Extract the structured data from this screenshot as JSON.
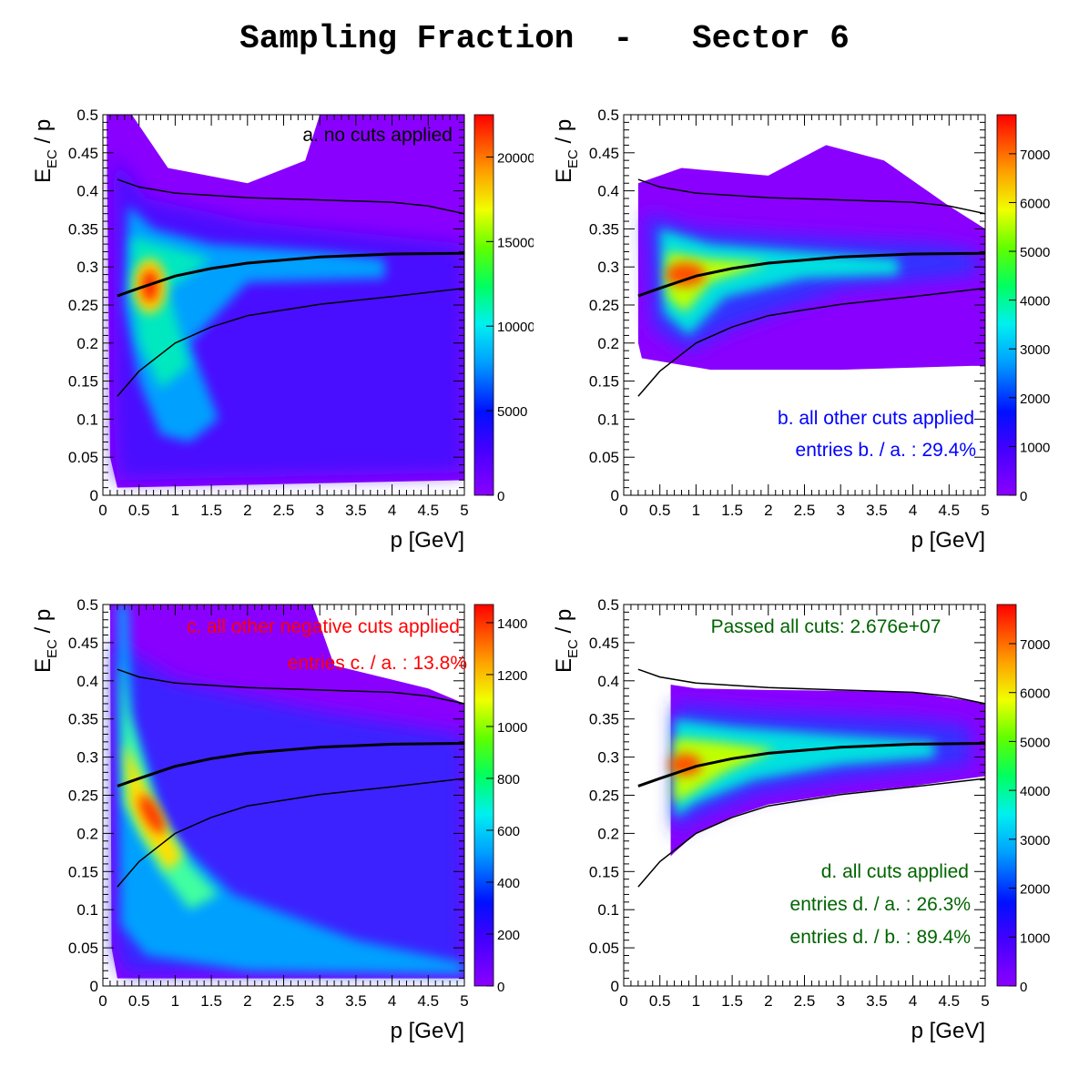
{
  "title": "Sampling Fraction  -   Sector 6",
  "chart_data": [
    {
      "type": "heatmap",
      "annotation": "a. no cuts applied",
      "annotation_color": "#000000",
      "xlabel": "p  [GeV]",
      "ylabel_main": "E",
      "ylabel_sub": "EC",
      "ylabel_tail": " / p",
      "xlim": [
        0,
        5
      ],
      "ylim": [
        0,
        0.5
      ],
      "x_ticks": [
        "0",
        "0.5",
        "1",
        "1.5",
        "2",
        "2.5",
        "3",
        "3.5",
        "4",
        "4.5",
        "5"
      ],
      "y_ticks": [
        "0",
        "0.05",
        "0.1",
        "0.15",
        "0.2",
        "0.25",
        "0.3",
        "0.35",
        "0.4",
        "0.45",
        "0.5"
      ],
      "z_max": 22500,
      "z_ticks": [
        "0",
        "5000",
        "10000",
        "15000",
        "20000"
      ],
      "z_tick_values": [
        0,
        5000,
        10000,
        15000,
        20000
      ],
      "z_label_clip": true,
      "colormap": "rainbow (purple-blue-cyan-green-yellow-red)",
      "mean_curve": {
        "x": [
          0.2,
          0.5,
          1,
          1.5,
          2,
          3,
          4,
          5
        ],
        "y": [
          0.262,
          0.272,
          0.288,
          0.298,
          0.305,
          0.313,
          0.317,
          0.318
        ]
      },
      "upper_cut": {
        "x": [
          0.2,
          0.5,
          1,
          2,
          3,
          4,
          4.5,
          5
        ],
        "y": [
          0.415,
          0.405,
          0.397,
          0.391,
          0.388,
          0.385,
          0.38,
          0.37
        ]
      },
      "lower_cut": {
        "x": [
          0.2,
          0.5,
          1,
          1.5,
          2,
          3,
          4,
          5
        ],
        "y": [
          0.13,
          0.163,
          0.2,
          0.221,
          0.236,
          0.251,
          0.261,
          0.272
        ]
      }
    },
    {
      "type": "heatmap",
      "annotation": "b. all other cuts applied",
      "annotation2": "entries b. / a. : 29.4%",
      "annotation_color": "#0000ff",
      "xlabel": "p  [GeV]",
      "ylabel_main": "E",
      "ylabel_sub": "EC",
      "ylabel_tail": " / p",
      "xlim": [
        0,
        5
      ],
      "ylim": [
        0,
        0.5
      ],
      "x_ticks": [
        "0",
        "0.5",
        "1",
        "1.5",
        "2",
        "2.5",
        "3",
        "3.5",
        "4",
        "4.5",
        "5"
      ],
      "y_ticks": [
        "0",
        "0.05",
        "0.1",
        "0.15",
        "0.2",
        "0.25",
        "0.3",
        "0.35",
        "0.4",
        "0.45",
        "0.5"
      ],
      "z_max": 7800,
      "z_ticks": [
        "0",
        "1000",
        "2000",
        "3000",
        "4000",
        "5000",
        "6000",
        "7000"
      ],
      "z_tick_values": [
        0,
        1000,
        2000,
        3000,
        4000,
        5000,
        6000,
        7000
      ],
      "colormap": "rainbow (purple-blue-cyan-green-yellow-red)",
      "mean_curve": {
        "x": [
          0.2,
          0.5,
          1,
          1.5,
          2,
          3,
          4,
          5
        ],
        "y": [
          0.262,
          0.272,
          0.288,
          0.298,
          0.305,
          0.313,
          0.317,
          0.318
        ]
      },
      "upper_cut": {
        "x": [
          0.2,
          0.5,
          1,
          2,
          3,
          4,
          4.5,
          5
        ],
        "y": [
          0.415,
          0.405,
          0.397,
          0.391,
          0.388,
          0.385,
          0.38,
          0.37
        ]
      },
      "lower_cut": {
        "x": [
          0.2,
          0.5,
          1,
          1.5,
          2,
          3,
          4,
          5
        ],
        "y": [
          0.13,
          0.163,
          0.2,
          0.221,
          0.236,
          0.251,
          0.261,
          0.272
        ]
      }
    },
    {
      "type": "heatmap",
      "annotation": "c. all other negative cuts applied",
      "annotation2": "entries c. / a. : 13.8%",
      "annotation_color": "#ff0000",
      "xlabel": "p  [GeV]",
      "ylabel_main": "E",
      "ylabel_sub": "EC",
      "ylabel_tail": " / p",
      "xlim": [
        0,
        5
      ],
      "ylim": [
        0,
        0.5
      ],
      "x_ticks": [
        "0",
        "0.5",
        "1",
        "1.5",
        "2",
        "2.5",
        "3",
        "3.5",
        "4",
        "4.5",
        "5"
      ],
      "y_ticks": [
        "0",
        "0.05",
        "0.1",
        "0.15",
        "0.2",
        "0.25",
        "0.3",
        "0.35",
        "0.4",
        "0.45",
        "0.5"
      ],
      "z_max": 1470,
      "z_ticks": [
        "0",
        "200",
        "400",
        "600",
        "800",
        "1000",
        "1200",
        "1400"
      ],
      "z_tick_values": [
        0,
        200,
        400,
        600,
        800,
        1000,
        1200,
        1400
      ],
      "colormap": "rainbow (purple-blue-cyan-green-yellow-red)",
      "mean_curve": {
        "x": [
          0.2,
          0.5,
          1,
          1.5,
          2,
          3,
          4,
          5
        ],
        "y": [
          0.262,
          0.272,
          0.288,
          0.298,
          0.305,
          0.313,
          0.317,
          0.318
        ]
      },
      "upper_cut": {
        "x": [
          0.2,
          0.5,
          1,
          2,
          3,
          4,
          4.5,
          5
        ],
        "y": [
          0.415,
          0.405,
          0.397,
          0.391,
          0.388,
          0.385,
          0.38,
          0.37
        ]
      },
      "lower_cut": {
        "x": [
          0.2,
          0.5,
          1,
          1.5,
          2,
          3,
          4,
          5
        ],
        "y": [
          0.13,
          0.163,
          0.2,
          0.221,
          0.236,
          0.251,
          0.261,
          0.272
        ]
      }
    },
    {
      "type": "heatmap",
      "annotation_top": "Passed all cuts: 2.676e+07",
      "annotation": "d. all cuts applied",
      "annotation2": "entries d. / a. : 26.3%",
      "annotation3": "entries d. / b. : 89.4%",
      "annotation_color": "#006400",
      "xlabel": "p  [GeV]",
      "ylabel_main": "E",
      "ylabel_sub": "EC",
      "ylabel_tail": " / p",
      "xlim": [
        0,
        5
      ],
      "ylim": [
        0,
        0.5
      ],
      "x_ticks": [
        "0",
        "0.5",
        "1",
        "1.5",
        "2",
        "2.5",
        "3",
        "3.5",
        "4",
        "4.5",
        "5"
      ],
      "y_ticks": [
        "0",
        "0.05",
        "0.1",
        "0.15",
        "0.2",
        "0.25",
        "0.3",
        "0.35",
        "0.4",
        "0.45",
        "0.5"
      ],
      "z_max": 7800,
      "z_ticks": [
        "0",
        "1000",
        "2000",
        "3000",
        "4000",
        "5000",
        "6000",
        "7000"
      ],
      "z_tick_values": [
        0,
        1000,
        2000,
        3000,
        4000,
        5000,
        6000,
        7000
      ],
      "colormap": "rainbow (purple-blue-cyan-green-yellow-red)",
      "mean_curve": {
        "x": [
          0.2,
          0.5,
          1,
          1.5,
          2,
          3,
          4,
          5
        ],
        "y": [
          0.262,
          0.272,
          0.288,
          0.298,
          0.305,
          0.313,
          0.317,
          0.318
        ]
      },
      "upper_cut": {
        "x": [
          0.2,
          0.5,
          1,
          2,
          3,
          4,
          4.5,
          5
        ],
        "y": [
          0.415,
          0.405,
          0.397,
          0.391,
          0.388,
          0.385,
          0.38,
          0.37
        ]
      },
      "lower_cut": {
        "x": [
          0.2,
          0.5,
          1,
          1.5,
          2,
          3,
          4,
          5
        ],
        "y": [
          0.13,
          0.163,
          0.2,
          0.221,
          0.236,
          0.251,
          0.261,
          0.272
        ]
      }
    }
  ]
}
